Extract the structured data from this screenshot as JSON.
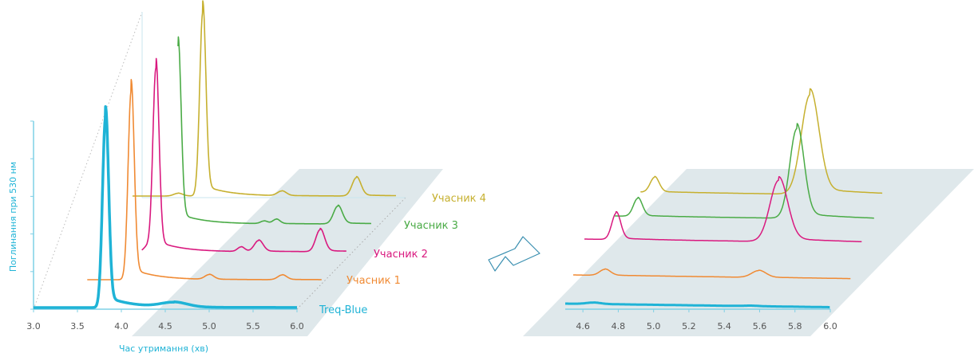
{
  "colors": {
    "treq_blue": "#1fb3d6",
    "participant_1": "#f08a33",
    "participant_2": "#d9197f",
    "participant_3": "#4aab46",
    "participant_4": "#c6b02f",
    "axis": "#7fd0e6",
    "plane": "#dfe8eb",
    "arrow": "#3a8fb0"
  },
  "chart_data": [
    {
      "type": "line",
      "xlabel": "Час утримання (хв)",
      "ylabel": "Поглинання при 530 нм",
      "xlim": [
        3.0,
        6.0
      ],
      "ylim": [
        0,
        1
      ],
      "x_ticks": [
        "3.0",
        "3.5",
        "4.0",
        "4.5",
        "5.0",
        "5.5",
        "6.0"
      ],
      "y_ticks": [
        0,
        0.2,
        0.4,
        0.6,
        0.8,
        1.0
      ],
      "grid": false,
      "series": [
        {
          "name": "Treq-Blue",
          "color": "#1fb3d6",
          "peaks": [
            {
              "x": 3.82,
              "h": 1.0,
              "w": 0.035
            },
            {
              "x": 4.6,
              "h": 0.025,
              "w": 0.15
            }
          ],
          "x_range": [
            3.0,
            6.0
          ]
        },
        {
          "name": "Учасник 1",
          "color": "#f08a33",
          "peaks": [
            {
              "x": 3.83,
              "h": 1.0,
              "w": 0.035
            },
            {
              "x": 4.72,
              "h": 0.025,
              "w": 0.05
            },
            {
              "x": 5.55,
              "h": 0.025,
              "w": 0.05
            }
          ],
          "x_range": [
            3.0,
            6.0
          ]
        },
        {
          "name": "Учасник 2",
          "color": "#d9197f",
          "peaks": [
            {
              "x": 3.73,
              "h": 0.03,
              "w": 0.04
            },
            {
              "x": 3.83,
              "h": 1.0,
              "w": 0.035
            },
            {
              "x": 4.8,
              "h": 0.025,
              "w": 0.04
            },
            {
              "x": 5.0,
              "h": 0.06,
              "w": 0.05
            },
            {
              "x": 5.7,
              "h": 0.12,
              "w": 0.05
            }
          ],
          "x_range": [
            3.0,
            6.0
          ]
        },
        {
          "name": "Учасник 3",
          "color": "#4aab46",
          "peaks": [
            {
              "x": 3.8,
              "h": 1.0,
              "w": 0.035
            },
            {
              "x": 4.78,
              "h": 0.015,
              "w": 0.04
            },
            {
              "x": 4.92,
              "h": 0.025,
              "w": 0.04
            },
            {
              "x": 5.62,
              "h": 0.1,
              "w": 0.05
            }
          ],
          "x_range": [
            3.0,
            6.0
          ]
        },
        {
          "name": "Учасник 4",
          "color": "#c6b02f",
          "peaks": [
            {
              "x": 3.52,
              "h": 0.015,
              "w": 0.05
            },
            {
              "x": 3.8,
              "h": 1.0,
              "w": 0.035
            },
            {
              "x": 4.7,
              "h": 0.025,
              "w": 0.05
            },
            {
              "x": 5.55,
              "h": 0.1,
              "w": 0.05
            }
          ],
          "x_range": [
            3.0,
            6.0
          ]
        }
      ]
    },
    {
      "type": "line",
      "xlabel": "",
      "ylabel": "",
      "xlim": [
        4.5,
        6.0
      ],
      "x_ticks": [
        "4.6",
        "4.8",
        "5.0",
        "5.2",
        "5.4",
        "5.6",
        "5.8",
        "6.0"
      ],
      "grid": false,
      "series": [
        {
          "color": "#1fb3d6",
          "peaks": [
            {
              "x": 4.66,
              "h": 0.03,
              "w": 0.04
            },
            {
              "x": 5.55,
              "h": 0.01,
              "w": 0.04
            }
          ],
          "x_range": [
            4.5,
            6.0
          ]
        },
        {
          "color": "#f08a33",
          "peaks": [
            {
              "x": 4.68,
              "h": 0.08,
              "w": 0.03
            },
            {
              "x": 5.55,
              "h": 0.09,
              "w": 0.04
            }
          ],
          "x_range": [
            4.5,
            6.0
          ]
        },
        {
          "color": "#d9197f",
          "peaks": [
            {
              "x": 4.68,
              "h": 0.3,
              "w": 0.025
            },
            {
              "x": 5.6,
              "h": 0.7,
              "w": 0.05
            }
          ],
          "x_range": [
            4.5,
            6.0
          ]
        },
        {
          "color": "#4aab46",
          "peaks": [
            {
              "x": 4.73,
              "h": 0.18,
              "w": 0.025
            },
            {
              "x": 5.63,
              "h": 0.9,
              "w": 0.04
            }
          ],
          "x_range": [
            4.6,
            6.0
          ]
        },
        {
          "color": "#c6b02f",
          "peaks": [
            {
              "x": 4.78,
              "h": 0.15,
              "w": 0.025
            },
            {
              "x": 5.66,
              "h": 1.0,
              "w": 0.05
            }
          ],
          "x_range": [
            4.7,
            6.0
          ]
        }
      ]
    }
  ]
}
